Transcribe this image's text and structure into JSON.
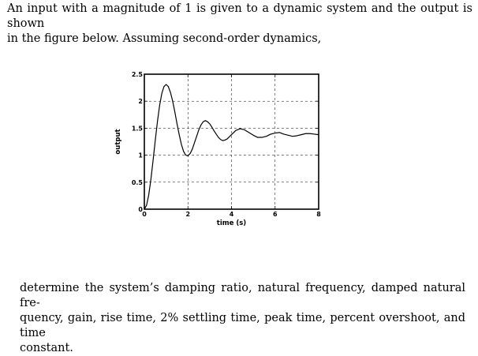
{
  "problem": {
    "intro_lines": [
      "An input with a magnitude of 1 is given to a dynamic system and the output is shown",
      "in the figure below. Assuming second-order dynamics,"
    ],
    "question_lines": [
      "determine the system’s damping ratio, natural frequency, damped natural fre-",
      "quency, gain, rise time, 2% settling time, peak time, percent overshoot, and time",
      "constant."
    ]
  },
  "chart_data": {
    "type": "line",
    "title": "",
    "xlabel": "time (s)",
    "ylabel": "output",
    "xlim": [
      0,
      8
    ],
    "ylim": [
      0,
      2.5
    ],
    "xticks": [
      0,
      2,
      4,
      6,
      8
    ],
    "xtick_labels": [
      "0",
      "2",
      "4",
      "6",
      "8"
    ],
    "yticks": [
      0,
      0.5,
      1,
      1.5,
      2,
      2.5
    ],
    "ytick_labels": [
      "0",
      "0.5",
      "1",
      "1.5",
      "2",
      "2.5"
    ],
    "grid": true,
    "series": [
      {
        "style": "solid black line",
        "x": [
          0,
          0.1,
          0.2,
          0.3,
          0.4,
          0.5,
          0.6,
          0.7,
          0.8,
          0.9,
          1.0,
          1.1,
          1.2,
          1.3,
          1.4,
          1.5,
          1.6,
          1.7,
          1.8,
          1.9,
          2.0,
          2.1,
          2.2,
          2.3,
          2.4,
          2.5,
          2.6,
          2.7,
          2.8,
          2.9,
          3.0,
          3.1,
          3.2,
          3.3,
          3.4,
          3.5,
          3.6,
          3.7,
          3.8,
          3.9,
          4.0,
          4.2,
          4.4,
          4.6,
          4.8,
          5.0,
          5.2,
          5.4,
          5.6,
          5.8,
          6.0,
          6.2,
          6.4,
          6.6,
          6.8,
          7.0,
          7.2,
          7.4,
          7.6,
          7.8,
          8.0
        ],
        "y": [
          0,
          0.07,
          0.26,
          0.55,
          0.9,
          1.27,
          1.62,
          1.92,
          2.14,
          2.27,
          2.31,
          2.27,
          2.16,
          2.0,
          1.8,
          1.58,
          1.38,
          1.2,
          1.07,
          1.0,
          0.99,
          1.03,
          1.11,
          1.23,
          1.35,
          1.47,
          1.56,
          1.62,
          1.64,
          1.62,
          1.58,
          1.52,
          1.45,
          1.39,
          1.33,
          1.29,
          1.27,
          1.28,
          1.3,
          1.34,
          1.38,
          1.46,
          1.49,
          1.47,
          1.42,
          1.37,
          1.33,
          1.33,
          1.35,
          1.39,
          1.41,
          1.42,
          1.39,
          1.37,
          1.35,
          1.36,
          1.38,
          1.4,
          1.4,
          1.39,
          1.38
        ]
      }
    ]
  }
}
